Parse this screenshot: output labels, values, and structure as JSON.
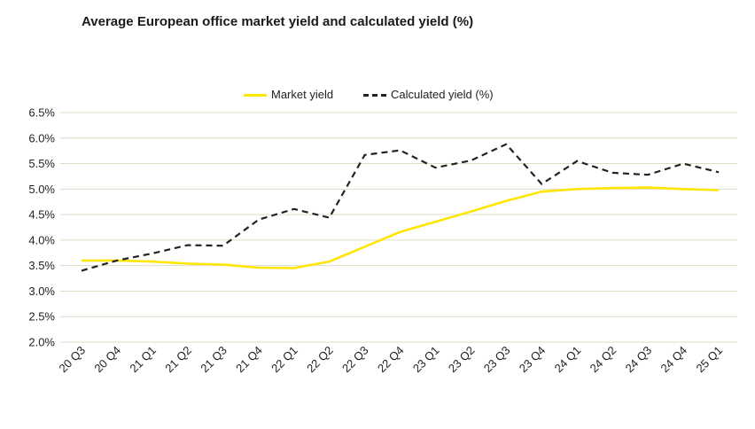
{
  "chart_data": {
    "type": "line",
    "title": "Average European office market yield and calculated yield (%)",
    "xlabel": "",
    "ylabel": "",
    "ylim": [
      2.0,
      6.5
    ],
    "yticks": [
      "2.0%",
      "2.5%",
      "3.0%",
      "3.5%",
      "4.0%",
      "4.5%",
      "5.0%",
      "5.5%",
      "6.0%",
      "6.5%"
    ],
    "ytick_values": [
      2.0,
      2.5,
      3.0,
      3.5,
      4.0,
      4.5,
      5.0,
      5.5,
      6.0,
      6.5
    ],
    "grid": true,
    "legend_position": "top-center",
    "categories": [
      "20 Q3",
      "20 Q4",
      "21 Q1",
      "21 Q2",
      "21 Q3",
      "21 Q4",
      "22 Q1",
      "22 Q2",
      "22 Q3",
      "22 Q4",
      "23 Q1",
      "23 Q2",
      "23 Q3",
      "23 Q4",
      "24 Q1",
      "24 Q2",
      "24 Q3",
      "24 Q4",
      "25 Q1"
    ],
    "series": [
      {
        "name": "Market yield",
        "color": "#ffe600",
        "style": "solid",
        "values": [
          3.6,
          3.6,
          3.58,
          3.54,
          3.52,
          3.46,
          3.45,
          3.58,
          3.87,
          4.16,
          4.36,
          4.56,
          4.77,
          4.95,
          5.0,
          5.02,
          5.03,
          5.0,
          4.98
        ]
      },
      {
        "name": "Calculated yield (%)",
        "color": "#222222",
        "style": "dashed",
        "values": [
          3.4,
          3.6,
          3.74,
          3.9,
          3.89,
          4.4,
          4.61,
          4.44,
          5.67,
          5.76,
          5.42,
          5.56,
          5.88,
          5.1,
          5.55,
          5.32,
          5.28,
          5.5,
          5.33
        ]
      }
    ]
  }
}
